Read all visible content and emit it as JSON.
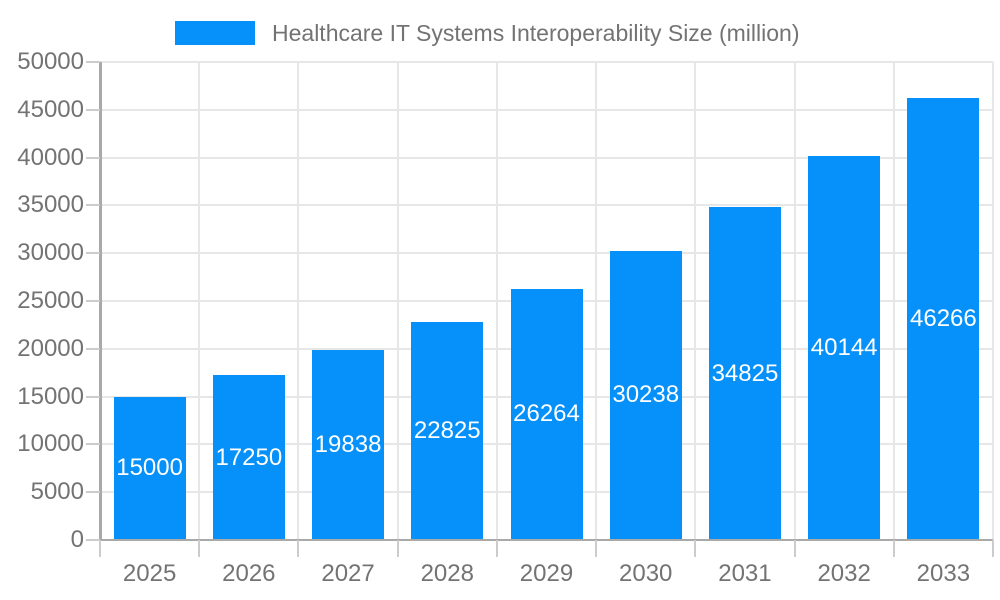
{
  "legend": {
    "label": "Healthcare IT Systems Interoperability Size (million)"
  },
  "chart_data": {
    "type": "bar",
    "title": "Healthcare IT Systems Interoperability Size (million)",
    "categories": [
      "2025",
      "2026",
      "2027",
      "2028",
      "2029",
      "2030",
      "2031",
      "2032",
      "2033"
    ],
    "series": [
      {
        "name": "Healthcare IT Systems Interoperability Size (million)",
        "values": [
          15000,
          17250,
          19838,
          22825,
          26264,
          30238,
          34825,
          40144,
          46266
        ]
      }
    ],
    "xlabel": "",
    "ylabel": "",
    "ylim": [
      0,
      50000
    ],
    "y_ticks": [
      0,
      5000,
      10000,
      15000,
      20000,
      25000,
      30000,
      35000,
      40000,
      45000,
      50000
    ],
    "grid": true,
    "vertical_grid": true,
    "legend_position": "top",
    "value_label_position": "inside-center",
    "colors": {
      "bar": "#0590FA",
      "value_label": "#FFFFFF",
      "tick_label": "#737373",
      "title": "#737373",
      "gridline": "#E7E7E7",
      "axis_line": "#A9A9A9",
      "tick_mark": "#CCCCCC",
      "background": "#FFFFFF"
    }
  }
}
